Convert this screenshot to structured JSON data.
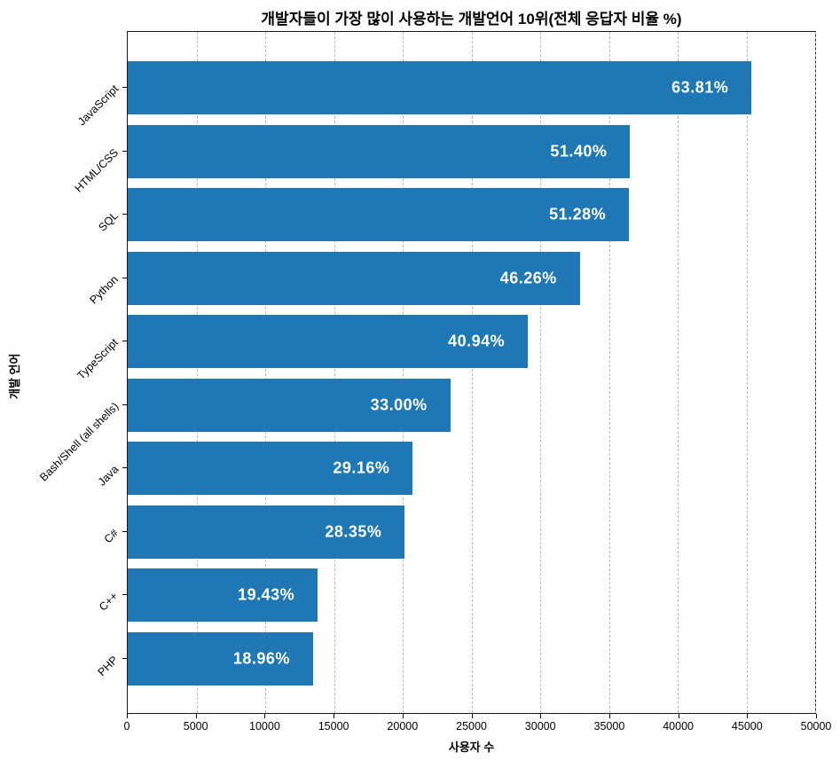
{
  "chart_data": {
    "type": "bar",
    "orientation": "horizontal",
    "title": "개발자들이 가장 많이 사용하는 개발언어 10위(전체 응답자 비율 %)",
    "xlabel": "사용자 수",
    "ylabel": "개발 언어",
    "xlim": [
      0,
      50000
    ],
    "xticks": [
      0,
      5000,
      10000,
      15000,
      20000,
      25000,
      30000,
      35000,
      40000,
      45000,
      50000
    ],
    "categories": [
      "JavaScript",
      "HTML/CSS",
      "SQL",
      "Python",
      "TypeScript",
      "Bash/Shell (all shells)",
      "Java",
      "C#",
      "C++",
      "PHP"
    ],
    "values": [
      45370,
      36545,
      36460,
      32890,
      29110,
      23465,
      20735,
      20155,
      13815,
      13480
    ],
    "labels": [
      "63.81%",
      "51.40%",
      "51.28%",
      "46.26%",
      "40.94%",
      "33.00%",
      "29.16%",
      "28.35%",
      "19.43%",
      "18.96%"
    ],
    "bar_color": "#1f77b4",
    "label_color": "#ffffff",
    "grid": {
      "axis": "x",
      "style": "dashed",
      "color": "#b8b8b8"
    },
    "legend": "none"
  }
}
